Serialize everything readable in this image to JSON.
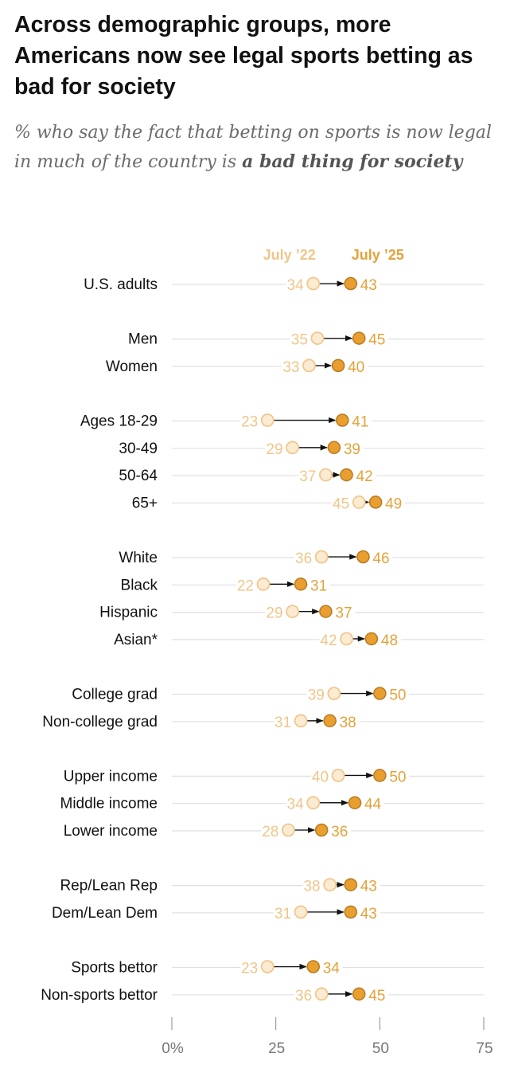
{
  "title": "Across demographic groups, more Americans now see legal sports betting as bad for society",
  "subtitle_pre": "% who say the fact that betting on sports is now legal in much of the country is ",
  "subtitle_bold": "a bad thing for society",
  "colors": {
    "old_text": "#f0c68a",
    "old_fill": "#fbebd3",
    "old_stroke": "#f1c78c",
    "new_text": "#e4a23a",
    "new_fill": "#e99f2f",
    "new_stroke": "#b87a1f",
    "grid": "#e0e0e0",
    "arrow": "#111111"
  },
  "chart_data": {
    "type": "dot-arrow",
    "series": [
      {
        "name": "July ’22"
      },
      {
        "name": "July ’25"
      }
    ],
    "xlim": [
      0,
      75
    ],
    "xticks": [
      0,
      25,
      50,
      75
    ],
    "xtick_labels": [
      "0%",
      "25",
      "50",
      "75"
    ],
    "groups": [
      [
        {
          "label": "U.S. adults",
          "v22": 34,
          "v25": 43
        }
      ],
      [
        {
          "label": "Men",
          "v22": 35,
          "v25": 45
        },
        {
          "label": "Women",
          "v22": 33,
          "v25": 40
        }
      ],
      [
        {
          "label": "Ages 18-29",
          "v22": 23,
          "v25": 41
        },
        {
          "label": "30-49",
          "v22": 29,
          "v25": 39
        },
        {
          "label": "50-64",
          "v22": 37,
          "v25": 42
        },
        {
          "label": "65+",
          "v22": 45,
          "v25": 49
        }
      ],
      [
        {
          "label": "White",
          "v22": 36,
          "v25": 46
        },
        {
          "label": "Black",
          "v22": 22,
          "v25": 31
        },
        {
          "label": "Hispanic",
          "v22": 29,
          "v25": 37
        },
        {
          "label": "Asian*",
          "v22": 42,
          "v25": 48
        }
      ],
      [
        {
          "label": "College grad",
          "v22": 39,
          "v25": 50
        },
        {
          "label": "Non-college grad",
          "v22": 31,
          "v25": 38
        }
      ],
      [
        {
          "label": "Upper income",
          "v22": 40,
          "v25": 50
        },
        {
          "label": "Middle income",
          "v22": 34,
          "v25": 44
        },
        {
          "label": "Lower income",
          "v22": 28,
          "v25": 36
        }
      ],
      [
        {
          "label": "Rep/Lean Rep",
          "v22": 38,
          "v25": 43
        },
        {
          "label": "Dem/Lean Dem",
          "v22": 31,
          "v25": 43
        }
      ],
      [
        {
          "label": "Sports bettor",
          "v22": 23,
          "v25": 34
        },
        {
          "label": "Non-sports bettor",
          "v22": 36,
          "v25": 45
        }
      ]
    ]
  }
}
